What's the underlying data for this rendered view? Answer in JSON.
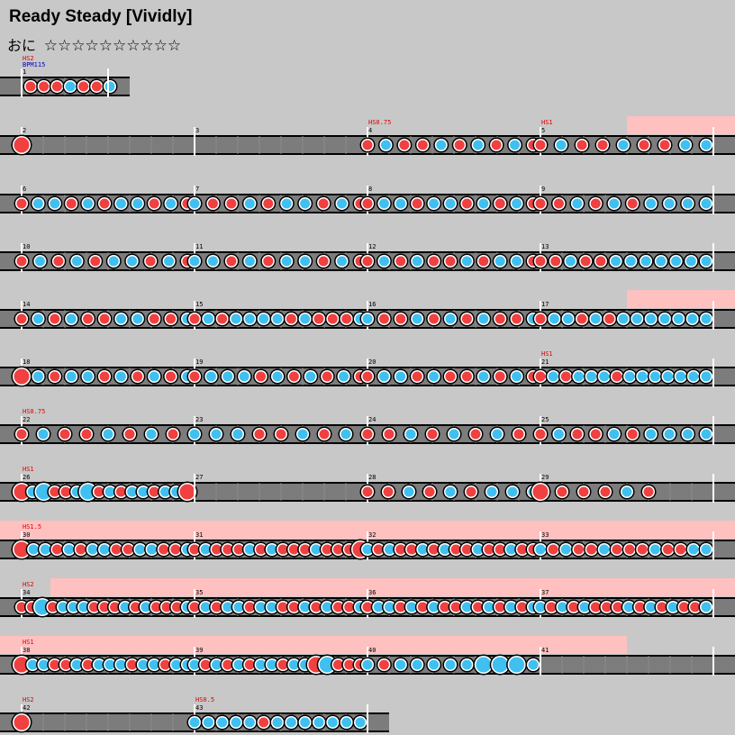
{
  "header": {
    "title": "Ready Steady [Vividly]",
    "difficulty_label": "おに",
    "stars": "☆☆☆☆☆☆☆☆☆☆"
  },
  "colors": {
    "background": "#c8c8c8",
    "lane": "#7c7c7c",
    "don": "#f04040",
    "ka": "#40c0f0",
    "gogo_highlight": "#ffc0c0",
    "measure_line": "#ffffff",
    "text_red": "#e00000",
    "text_blue": "#0000c0"
  },
  "chart": {
    "rows": [
      {
        "measures": [
          {
            "num": "1",
            "notes": [
              "d",
              "d",
              "d",
              "k",
              "d",
              "d",
              "k"
            ]
          }
        ],
        "span": 1,
        "annot": [
          "HS2",
          "BPM115"
        ]
      },
      {
        "measures": [
          {
            "num": "2",
            "notes": [
              "D"
            ]
          },
          {
            "num": "3",
            "notes": []
          },
          {
            "num": "4",
            "notes": [
              "d",
              "k",
              "d",
              "d",
              "k",
              "d",
              "k",
              "d",
              "k",
              "d"
            ],
            "annot": "HS0.75"
          },
          {
            "num": "5",
            "notes": [
              "d",
              "k",
              "d",
              "d",
              "k",
              "d",
              "d",
              "k",
              "k"
            ],
            "annot": "HS1"
          }
        ]
      },
      {
        "measures": [
          {
            "num": "6",
            "notes": [
              "d",
              "k",
              "k",
              "d",
              "k",
              "d",
              "k",
              "k",
              "d",
              "k",
              "d"
            ]
          },
          {
            "num": "7",
            "notes": [
              "k",
              "d",
              "d",
              "k",
              "d",
              "k",
              "k",
              "d",
              "k",
              "d"
            ]
          },
          {
            "num": "8",
            "notes": [
              "d",
              "k",
              "k",
              "d",
              "k",
              "k",
              "d",
              "k",
              "d",
              "k",
              "d"
            ]
          },
          {
            "num": "9",
            "notes": [
              "d",
              "d",
              "k",
              "d",
              "k",
              "d",
              "k",
              "k",
              "k",
              "k"
            ]
          }
        ]
      },
      {
        "measures": [
          {
            "num": "10",
            "notes": [
              "d",
              "k",
              "d",
              "k",
              "d",
              "k",
              "k",
              "d",
              "k",
              "d"
            ]
          },
          {
            "num": "11",
            "notes": [
              "k",
              "k",
              "d",
              "k",
              "d",
              "k",
              "k",
              "d",
              "k",
              "d"
            ]
          },
          {
            "num": "12",
            "notes": [
              "d",
              "k",
              "d",
              "k",
              "d",
              "d",
              "k",
              "d",
              "k",
              "k",
              "d"
            ]
          },
          {
            "num": "13",
            "notes": [
              "d",
              "d",
              "k",
              "d",
              "d",
              "k",
              "k",
              "k",
              "k",
              "k",
              "k",
              "k"
            ]
          }
        ]
      },
      {
        "measures": [
          {
            "num": "14",
            "notes": [
              "d",
              "k",
              "d",
              "k",
              "d",
              "d",
              "k",
              "k",
              "d",
              "d",
              "k"
            ]
          },
          {
            "num": "15",
            "notes": [
              "d",
              "k",
              "d",
              "k",
              "k",
              "k",
              "k",
              "d",
              "k",
              "d",
              "d",
              "d",
              "k"
            ]
          },
          {
            "num": "16",
            "notes": [
              "k",
              "d",
              "d",
              "k",
              "d",
              "k",
              "d",
              "k",
              "d",
              "d",
              "k"
            ]
          },
          {
            "num": "17",
            "notes": [
              "d",
              "k",
              "k",
              "d",
              "k",
              "d",
              "k",
              "k",
              "k",
              "k",
              "k",
              "k",
              "k"
            ]
          }
        ]
      },
      {
        "measures": [
          {
            "num": "18",
            "notes": [
              "D",
              "k",
              "d",
              "k",
              "k",
              "d",
              "k",
              "d",
              "k",
              "d",
              "k"
            ]
          },
          {
            "num": "19",
            "notes": [
              "d",
              "k",
              "k",
              "k",
              "d",
              "k",
              "d",
              "k",
              "d",
              "k",
              "d"
            ]
          },
          {
            "num": "20",
            "notes": [
              "d",
              "k",
              "k",
              "d",
              "k",
              "d",
              "d",
              "k",
              "d",
              "k",
              "d"
            ]
          },
          {
            "num": "21",
            "notes": [
              "d",
              "k",
              "d",
              "k",
              "k",
              "k",
              "d",
              "k",
              "k",
              "k",
              "k",
              "k",
              "k",
              "k"
            ],
            "annot": "HS1"
          }
        ]
      },
      {
        "measures": [
          {
            "num": "22",
            "notes": [
              "d",
              "k",
              "d",
              "d",
              "k",
              "d",
              "k",
              "d"
            ],
            "annot": "HS0.75"
          },
          {
            "num": "23",
            "notes": [
              "k",
              "k",
              "k",
              "d",
              "d",
              "k",
              "d",
              "k"
            ]
          },
          {
            "num": "24",
            "notes": [
              "d",
              "d",
              "k",
              "d",
              "k",
              "d",
              "k",
              "d"
            ]
          },
          {
            "num": "25",
            "notes": [
              "d",
              "k",
              "d",
              "d",
              "k",
              "d",
              "k",
              "k",
              "k",
              "k"
            ]
          }
        ]
      },
      {
        "measures": [
          {
            "num": "26",
            "notes": [
              "D",
              "k",
              "K",
              "d",
              "d",
              "k",
              "K",
              "d",
              "k",
              "d",
              "k",
              "k",
              "d",
              "k",
              "k",
              "D"
            ],
            "annot": "HS1"
          },
          {
            "num": "27",
            "notes": []
          },
          {
            "num": "28",
            "notes": [
              "d",
              "d",
              "k",
              "d",
              "k",
              "d",
              "k",
              "k",
              "k"
            ]
          },
          {
            "num": "29",
            "notes": [
              "D",
              "d",
              "d",
              "d",
              "k",
              "d"
            ]
          }
        ]
      },
      {
        "measures": [
          {
            "num": "30",
            "notes": [
              "D",
              "k",
              "k",
              "d",
              "k",
              "d",
              "k",
              "k",
              "d",
              "d",
              "k",
              "k",
              "d",
              "d",
              "k"
            ],
            "annot": "HS1.5"
          },
          {
            "num": "31",
            "notes": [
              "d",
              "k",
              "d",
              "d",
              "d",
              "k",
              "d",
              "k",
              "d",
              "d",
              "d",
              "k",
              "d",
              "d",
              "d",
              "D"
            ]
          },
          {
            "num": "32",
            "notes": [
              "k",
              "d",
              "k",
              "d",
              "d",
              "k",
              "d",
              "k",
              "d",
              "d",
              "k",
              "d",
              "d",
              "k",
              "d",
              "d"
            ]
          },
          {
            "num": "33",
            "notes": [
              "k",
              "d",
              "k",
              "d",
              "d",
              "k",
              "d",
              "d",
              "d",
              "k",
              "d",
              "d",
              "k",
              "k"
            ]
          }
        ]
      },
      {
        "measures": [
          {
            "num": "34",
            "notes": [
              "d",
              "d",
              "K",
              "d",
              "k",
              "k",
              "k",
              "d",
              "d",
              "d",
              "k",
              "d",
              "k",
              "d",
              "d",
              "d",
              "k"
            ],
            "annot": "HS2"
          },
          {
            "num": "35",
            "notes": [
              "d",
              "k",
              "d",
              "k",
              "k",
              "d",
              "k",
              "k",
              "d",
              "d",
              "k",
              "d",
              "k",
              "d",
              "d",
              "k"
            ]
          },
          {
            "num": "36",
            "notes": [
              "d",
              "k",
              "k",
              "d",
              "k",
              "d",
              "k",
              "d",
              "d",
              "k",
              "d",
              "k",
              "d",
              "k",
              "d",
              "k"
            ]
          },
          {
            "num": "37",
            "notes": [
              "k",
              "d",
              "k",
              "d",
              "k",
              "d",
              "d",
              "d",
              "k",
              "d",
              "k",
              "d",
              "k",
              "d",
              "d",
              "k"
            ]
          }
        ]
      },
      {
        "measures": [
          {
            "num": "38",
            "notes": [
              "D",
              "k",
              "k",
              "d",
              "d",
              "k",
              "d",
              "k",
              "k",
              "k",
              "d",
              "k",
              "k",
              "d",
              "k",
              "k"
            ],
            "annot": "HS1"
          },
          {
            "num": "39",
            "notes": [
              "k",
              "d",
              "k",
              "d",
              "k",
              "d",
              "k",
              "k",
              "d",
              "k",
              "k",
              "D",
              "K",
              "d",
              "d",
              "d"
            ]
          },
          {
            "num": "40",
            "notes": [
              "k",
              "d",
              "k",
              "k",
              "k",
              "k",
              "k",
              "K",
              "K",
              "K",
              "k"
            ]
          },
          {
            "num": "41",
            "notes": []
          }
        ]
      },
      {
        "measures": [
          {
            "num": "42",
            "notes": [
              "D"
            ],
            "annot": "HS2"
          },
          {
            "num": "43",
            "notes": [
              "k",
              "k",
              "k",
              "k",
              "k",
              "d",
              "k",
              "k",
              "k",
              "k",
              "k",
              "k",
              "k"
            ],
            "annot": "HS0.5"
          }
        ],
        "span": 2
      }
    ]
  }
}
